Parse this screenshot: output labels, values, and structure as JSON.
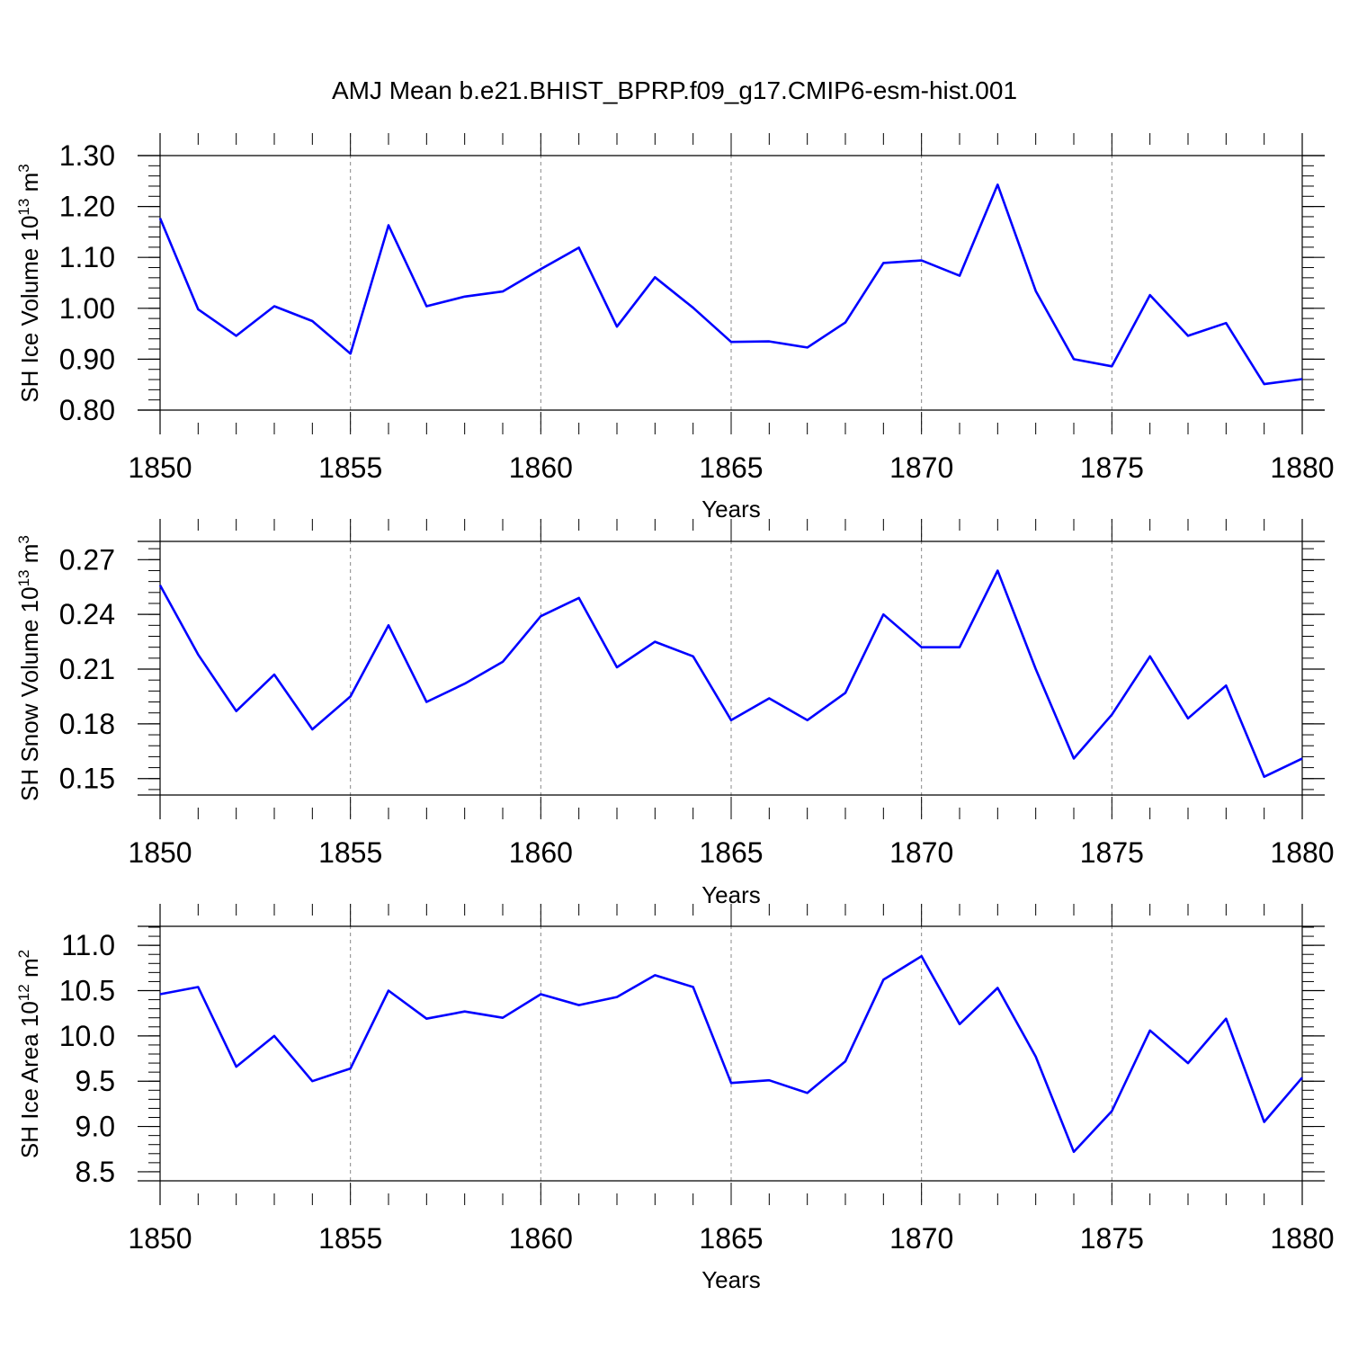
{
  "title": "AMJ Mean b.e21.BHIST_BPRP.f09_g17.CMIP6-esm-hist.001",
  "colors": {
    "line": "#0000ff",
    "axis": "#000000",
    "grid": "#888888"
  },
  "chart_data": [
    {
      "type": "line",
      "ylabel": "SH Ice Volume 10",
      "ylabel_exp": "13",
      "ylabel_unit": " m",
      "ylabel_unit_exp": "3",
      "xlabel": "Years",
      "xlim": [
        1850,
        1880
      ],
      "ylim": [
        0.8,
        1.3
      ],
      "x_ticks": [
        "1850",
        "1855",
        "1860",
        "1865",
        "1870",
        "1875",
        "1880"
      ],
      "y_ticks": [
        0.8,
        0.9,
        1.0,
        1.1,
        1.2,
        1.3
      ],
      "y_tick_labels": [
        "0.80",
        "0.90",
        "1.00",
        "1.10",
        "1.20",
        "1.30"
      ],
      "grid": "dashed vertical every 5 years",
      "series": [
        {
          "name": "SH Ice Volume",
          "x": [
            1850,
            1851,
            1852,
            1853,
            1854,
            1855,
            1856,
            1857,
            1858,
            1859,
            1860,
            1861,
            1862,
            1863,
            1864,
            1865,
            1866,
            1867,
            1868,
            1869,
            1870,
            1871,
            1872,
            1873,
            1874,
            1875,
            1876,
            1877,
            1878,
            1879,
            1880
          ],
          "values": [
            1.177,
            0.998,
            0.946,
            1.004,
            0.975,
            0.911,
            1.163,
            1.004,
            1.023,
            1.033,
            1.077,
            1.119,
            0.964,
            1.061,
            1.001,
            0.934,
            0.935,
            0.923,
            0.972,
            1.089,
            1.094,
            1.064,
            1.243,
            1.034,
            0.9,
            0.886,
            1.026,
            0.946,
            0.971,
            0.851,
            0.861
          ]
        }
      ]
    },
    {
      "type": "line",
      "ylabel": "SH Snow Volume 10",
      "ylabel_exp": "13",
      "ylabel_unit": " m",
      "ylabel_unit_exp": "3",
      "xlabel": "Years",
      "xlim": [
        1850,
        1880
      ],
      "ylim": [
        0.141,
        0.28
      ],
      "x_ticks": [
        "1850",
        "1855",
        "1860",
        "1865",
        "1870",
        "1875",
        "1880"
      ],
      "y_ticks": [
        0.15,
        0.18,
        0.21,
        0.24,
        0.27
      ],
      "y_tick_labels": [
        "0.15",
        "0.18",
        "0.21",
        "0.24",
        "0.27"
      ],
      "grid": "dashed vertical every 5 years",
      "series": [
        {
          "name": "SH Snow Volume",
          "x": [
            1850,
            1851,
            1852,
            1853,
            1854,
            1855,
            1856,
            1857,
            1858,
            1859,
            1860,
            1861,
            1862,
            1863,
            1864,
            1865,
            1866,
            1867,
            1868,
            1869,
            1870,
            1871,
            1872,
            1873,
            1874,
            1875,
            1876,
            1877,
            1878,
            1879,
            1880
          ],
          "values": [
            0.256,
            0.218,
            0.187,
            0.207,
            0.177,
            0.195,
            0.234,
            0.192,
            0.202,
            0.214,
            0.239,
            0.249,
            0.211,
            0.225,
            0.217,
            0.182,
            0.194,
            0.182,
            0.197,
            0.24,
            0.222,
            0.222,
            0.264,
            0.21,
            0.161,
            0.185,
            0.217,
            0.183,
            0.201,
            0.151,
            0.161
          ]
        }
      ]
    },
    {
      "type": "line",
      "ylabel": "SH Ice Area 10",
      "ylabel_exp": "12",
      "ylabel_unit": " m",
      "ylabel_unit_exp": "2",
      "xlabel": "Years",
      "xlim": [
        1850,
        1880
      ],
      "ylim": [
        8.4,
        11.21
      ],
      "x_ticks": [
        "1850",
        "1855",
        "1860",
        "1865",
        "1870",
        "1875",
        "1880"
      ],
      "y_ticks": [
        8.5,
        9.0,
        9.5,
        10.0,
        10.5,
        11.0
      ],
      "y_tick_labels": [
        "8.5",
        "9.0",
        "9.5",
        "10.0",
        "10.5",
        "11.0"
      ],
      "grid": "dashed vertical every 5 years",
      "series": [
        {
          "name": "SH Ice Area",
          "x": [
            1850,
            1851,
            1852,
            1853,
            1854,
            1855,
            1856,
            1857,
            1858,
            1859,
            1860,
            1861,
            1862,
            1863,
            1864,
            1865,
            1866,
            1867,
            1868,
            1869,
            1870,
            1871,
            1872,
            1873,
            1874,
            1875,
            1876,
            1877,
            1878,
            1879,
            1880
          ],
          "values": [
            10.46,
            10.54,
            9.66,
            10.0,
            9.5,
            9.64,
            10.5,
            10.19,
            10.27,
            10.2,
            10.46,
            10.34,
            10.43,
            10.67,
            10.54,
            9.48,
            9.51,
            9.37,
            9.72,
            10.62,
            10.88,
            10.13,
            10.53,
            9.77,
            8.72,
            9.17,
            10.06,
            9.7,
            10.19,
            9.05,
            9.54
          ]
        }
      ]
    }
  ]
}
